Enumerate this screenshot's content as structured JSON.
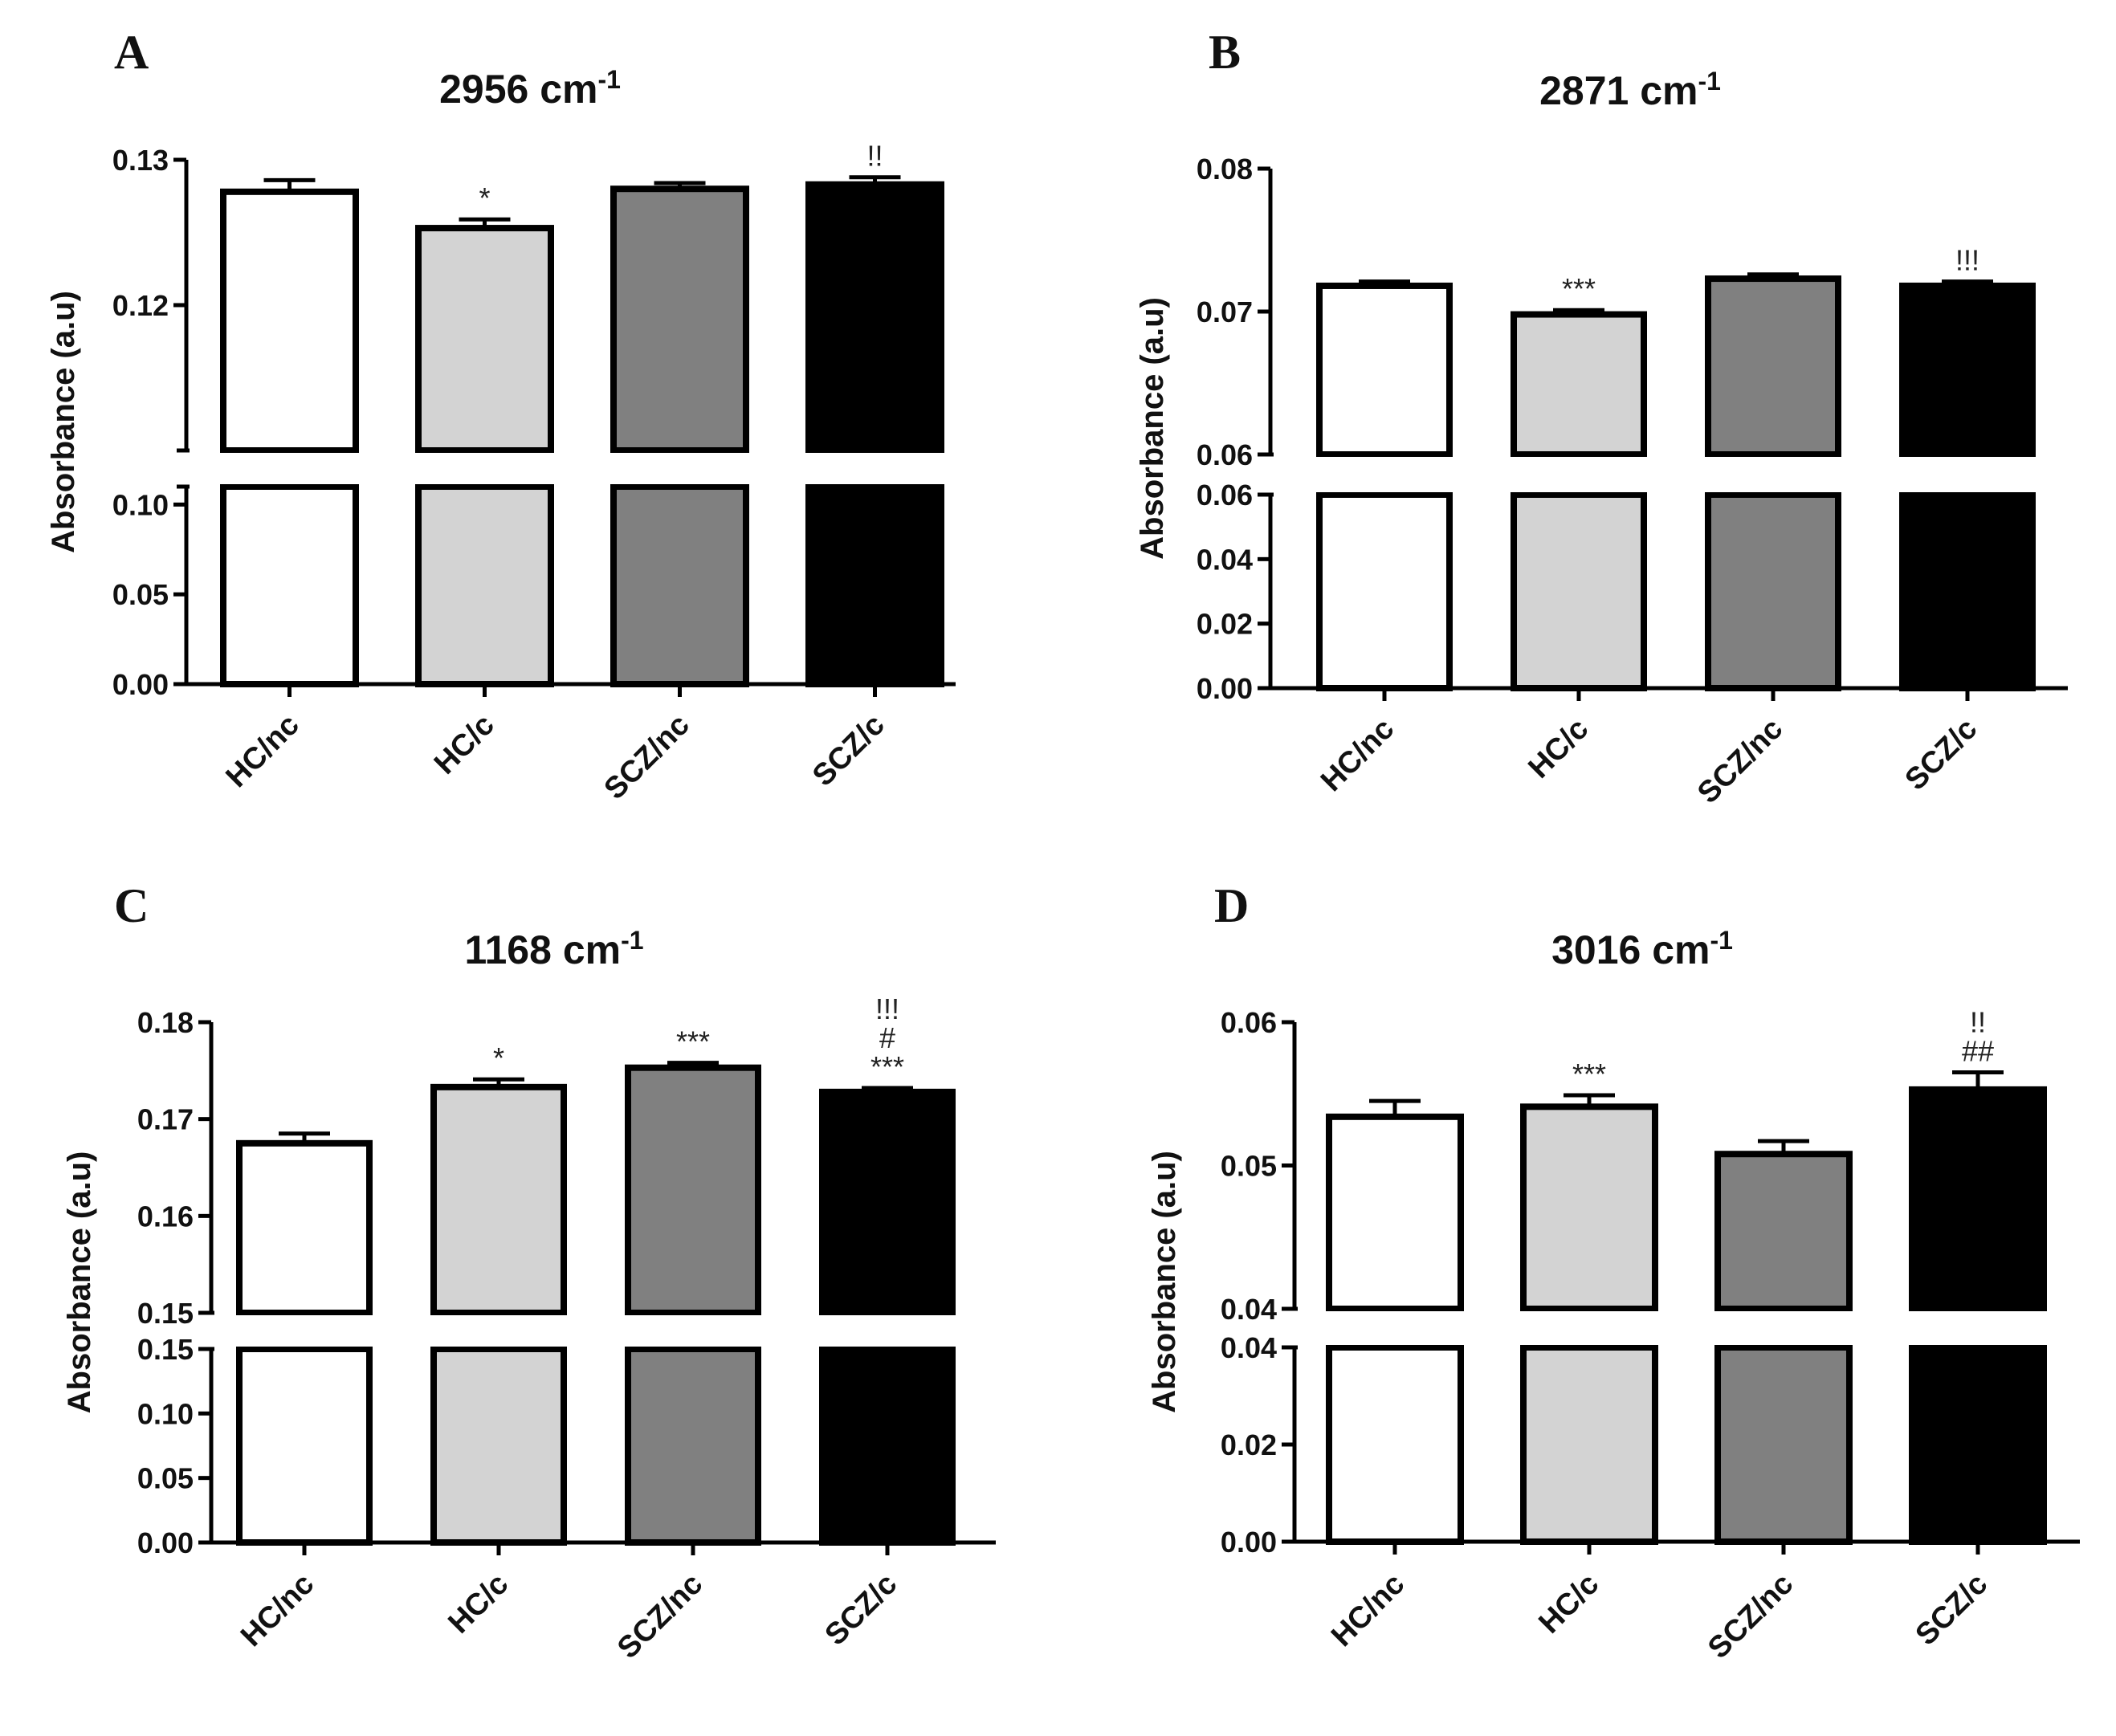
{
  "chart_data": [
    {
      "type": "bar",
      "panel": "A",
      "title": "2956 cm",
      "title_sup": "-1",
      "ylabel": "Absorbance (a.u)",
      "categories": [
        "HC/nc",
        "HC/c",
        "SCZ/nc",
        "SCZ/c"
      ],
      "values": [
        0.1278,
        0.1253,
        0.128,
        0.1283
      ],
      "errors": [
        0.0008,
        0.0006,
        0.0004,
        0.0005
      ],
      "fills": [
        "#ffffff",
        "#d3d3d3",
        "#808080",
        "#000000"
      ],
      "significance": [
        [],
        [
          "*"
        ],
        [],
        [
          "!!"
        ]
      ],
      "axis_break": true,
      "upper_segment": {
        "ylim": [
          0.11,
          0.13
        ],
        "ticks": [
          "0.12",
          "0.13"
        ]
      },
      "lower_segment": {
        "ylim": [
          0.0,
          0.11
        ],
        "ticks": [
          "0.00",
          "0.05",
          "0.10"
        ]
      }
    },
    {
      "type": "bar",
      "panel": "B",
      "title": "2871 cm",
      "title_sup": "-1",
      "ylabel": "Absorbance (a.u)",
      "categories": [
        "HC/nc",
        "HC/c",
        "SCZ/nc",
        "SCZ/c"
      ],
      "values": [
        0.0718,
        0.0698,
        0.0723,
        0.0718
      ],
      "errors": [
        0.0003,
        0.0003,
        0.0003,
        0.0003
      ],
      "fills": [
        "#ffffff",
        "#d3d3d3",
        "#808080",
        "#000000"
      ],
      "significance": [
        [],
        [
          "***"
        ],
        [],
        [
          "!!!"
        ]
      ],
      "axis_break": true,
      "upper_segment": {
        "ylim": [
          0.06,
          0.08
        ],
        "ticks": [
          "0.06",
          "0.07",
          "0.08"
        ]
      },
      "lower_segment": {
        "ylim": [
          0.0,
          0.06
        ],
        "ticks": [
          "0.00",
          "0.02",
          "0.04",
          "0.06"
        ]
      }
    },
    {
      "type": "bar",
      "panel": "C",
      "title": "1168 cm",
      "title_sup": "-1",
      "ylabel": "Absorbance (a.u)",
      "categories": [
        "HC/nc",
        "HC/c",
        "SCZ/nc",
        "SCZ/c"
      ],
      "values": [
        0.1675,
        0.1733,
        0.1753,
        0.1728
      ],
      "errors": [
        0.001,
        0.0008,
        0.0005,
        0.0004
      ],
      "fills": [
        "#ffffff",
        "#d3d3d3",
        "#808080",
        "#000000"
      ],
      "significance": [
        [],
        [
          "*"
        ],
        [
          "***"
        ],
        [
          "!!!",
          "#",
          "***"
        ]
      ],
      "axis_break": true,
      "upper_segment": {
        "ylim": [
          0.15,
          0.18
        ],
        "ticks": [
          "0.15",
          "0.16",
          "0.17",
          "0.18"
        ]
      },
      "lower_segment": {
        "ylim": [
          0.0,
          0.15
        ],
        "ticks": [
          "0.00",
          "0.05",
          "0.10",
          "0.15"
        ]
      }
    },
    {
      "type": "bar",
      "panel": "D",
      "title": "3016 cm",
      "title_sup": "-1",
      "ylabel": "Absorbance (a.u)",
      "categories": [
        "HC/nc",
        "HC/c",
        "SCZ/nc",
        "SCZ/c"
      ],
      "values": [
        0.0534,
        0.0541,
        0.0508,
        0.0553
      ],
      "errors": [
        0.0011,
        0.0008,
        0.0009,
        0.0012
      ],
      "fills": [
        "#ffffff",
        "#d3d3d3",
        "#808080",
        "#000000"
      ],
      "significance": [
        [],
        [
          "***"
        ],
        [],
        [
          "!!",
          "##"
        ]
      ],
      "axis_break": true,
      "upper_segment": {
        "ylim": [
          0.04,
          0.06
        ],
        "ticks": [
          "0.04",
          "0.05",
          "0.06"
        ]
      },
      "lower_segment": {
        "ylim": [
          0.0,
          0.04
        ],
        "ticks": [
          "0.00",
          "0.02",
          "0.04"
        ]
      }
    }
  ]
}
